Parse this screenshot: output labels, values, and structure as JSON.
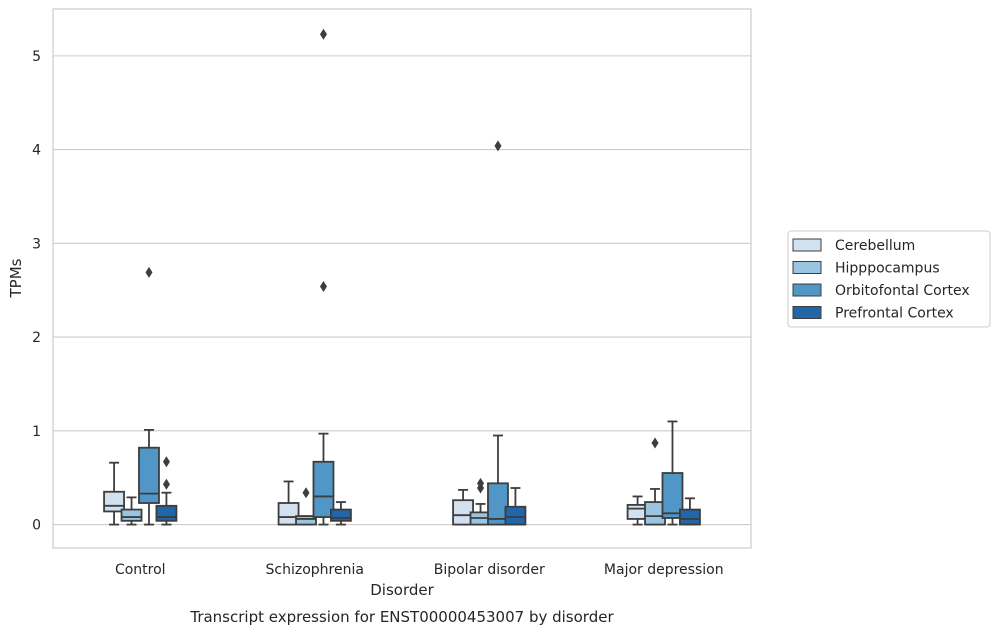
{
  "chart_data": {
    "type": "boxplot",
    "title": "",
    "caption": "Transcript expression for ENST00000453007 by disorder",
    "xlabel": "Disorder",
    "ylabel": "TPMs",
    "ylim": [
      -0.25,
      5.5
    ],
    "yticks": [
      "0",
      "1",
      "2",
      "3",
      "4",
      "5"
    ],
    "grid": "horizontal",
    "legend_position": "right",
    "categories": [
      "Control",
      "Schizophrenia",
      "Bipolar disorder",
      "Major depression"
    ],
    "series": [
      {
        "name": "Cerebellum",
        "color": "#d1e1f0",
        "boxes": [
          {
            "whislo": 0.0,
            "q1": 0.14,
            "med": 0.2,
            "q3": 0.35,
            "whishi": 0.66,
            "fliers": []
          },
          {
            "whislo": 0.0,
            "q1": 0.0,
            "med": 0.08,
            "q3": 0.23,
            "whishi": 0.46,
            "fliers": []
          },
          {
            "whislo": 0.0,
            "q1": 0.0,
            "med": 0.1,
            "q3": 0.26,
            "whishi": 0.37,
            "fliers": []
          },
          {
            "whislo": 0.0,
            "q1": 0.06,
            "med": 0.17,
            "q3": 0.21,
            "whishi": 0.3,
            "fliers": []
          }
        ]
      },
      {
        "name": "Hipppocampus",
        "color": "#9ac4df",
        "boxes": [
          {
            "whislo": 0.0,
            "q1": 0.04,
            "med": 0.08,
            "q3": 0.16,
            "whishi": 0.29,
            "fliers": []
          },
          {
            "whislo": 0.0,
            "q1": 0.0,
            "med": 0.06,
            "q3": 0.09,
            "whishi": 0.09,
            "fliers": [
              0.34
            ]
          },
          {
            "whislo": 0.0,
            "q1": 0.0,
            "med": 0.07,
            "q3": 0.13,
            "whishi": 0.22,
            "fliers": [
              0.39,
              0.44
            ]
          },
          {
            "whislo": 0.0,
            "q1": 0.0,
            "med": 0.09,
            "q3": 0.24,
            "whishi": 0.38,
            "fliers": [
              0.87
            ]
          }
        ]
      },
      {
        "name": "Orbitofontal Cortex",
        "color": "#5096c6",
        "boxes": [
          {
            "whislo": 0.0,
            "q1": 0.23,
            "med": 0.33,
            "q3": 0.82,
            "whishi": 1.01,
            "fliers": [
              2.69
            ]
          },
          {
            "whislo": 0.0,
            "q1": 0.08,
            "med": 0.3,
            "q3": 0.67,
            "whishi": 0.97,
            "fliers": [
              2.54,
              5.23
            ]
          },
          {
            "whislo": 0.0,
            "q1": 0.0,
            "med": 0.06,
            "q3": 0.44,
            "whishi": 0.95,
            "fliers": [
              4.04
            ]
          },
          {
            "whislo": 0.0,
            "q1": 0.07,
            "med": 0.12,
            "q3": 0.55,
            "whishi": 1.1,
            "fliers": []
          }
        ]
      },
      {
        "name": "Prefrontal Cortex",
        "color": "#2166a9",
        "boxes": [
          {
            "whislo": 0.0,
            "q1": 0.04,
            "med": 0.08,
            "q3": 0.2,
            "whishi": 0.34,
            "fliers": [
              0.43,
              0.67
            ]
          },
          {
            "whislo": 0.0,
            "q1": 0.04,
            "med": 0.07,
            "q3": 0.16,
            "whishi": 0.24,
            "fliers": []
          },
          {
            "whislo": 0.0,
            "q1": 0.0,
            "med": 0.08,
            "q3": 0.19,
            "whishi": 0.39,
            "fliers": []
          },
          {
            "whislo": 0.0,
            "q1": 0.0,
            "med": 0.06,
            "q3": 0.16,
            "whishi": 0.28,
            "fliers": []
          }
        ]
      }
    ]
  }
}
